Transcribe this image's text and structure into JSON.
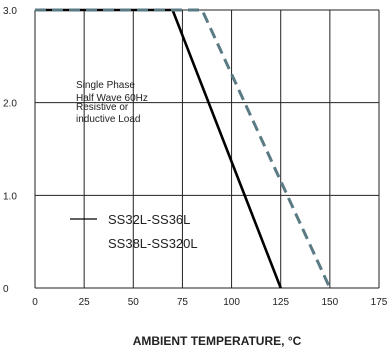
{
  "chart_data": {
    "type": "line",
    "xlabel": "AMBIENT TEMPERATURE, °C",
    "ylabel": "",
    "xlim": [
      0,
      175
    ],
    "ylim": [
      0,
      3.0
    ],
    "x_ticks": [
      0,
      25,
      50,
      75,
      100,
      125,
      150,
      175
    ],
    "y_ticks": [
      0,
      1.0,
      2.0,
      3.0
    ],
    "y_tick_labels": [
      "0",
      "1.0",
      "2.0",
      "3.0"
    ],
    "grid": true,
    "annotation": [
      "Single Phase",
      "Half Wave 60Hz",
      "Resistive or",
      "inductive Load"
    ],
    "series": [
      {
        "name": "SS32L-SS36L",
        "style": "solid",
        "color": "#000000",
        "x": [
          0,
          70,
          125
        ],
        "y": [
          3.0,
          3.0,
          0
        ]
      },
      {
        "name": "SS38L-SS320L",
        "style": "dashed",
        "color": "#5a7a84",
        "x": [
          0,
          85,
          150
        ],
        "y": [
          3.0,
          3.0,
          0
        ]
      }
    ]
  }
}
